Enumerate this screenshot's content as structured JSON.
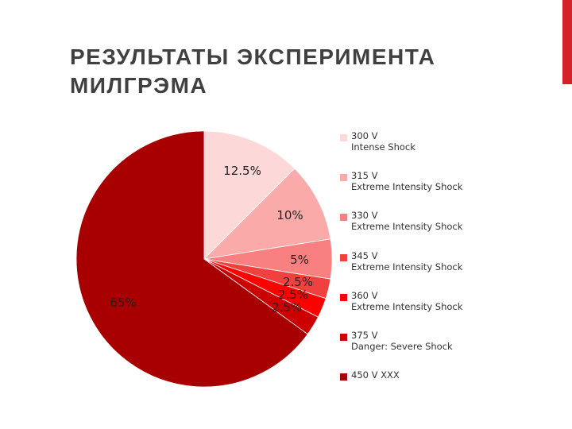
{
  "slide": {
    "title_line1": "РЕЗУЛЬТАТЫ ЭКСПЕРИМЕНТА",
    "title_line2": "МИЛГРЭМА",
    "accent_color": "#d2232a"
  },
  "chart_data": {
    "type": "pie",
    "title": "",
    "legend_position": "right",
    "slices": [
      {
        "line1": "300 V",
        "line2": "Intense Shock",
        "value": 12.5,
        "label": "12.5%",
        "color": "#fdd8d8"
      },
      {
        "line1": "315 V",
        "line2": "Extreme Intensity Shock",
        "value": 10,
        "label": "10%",
        "color": "#fbaaaa"
      },
      {
        "line1": "330 V",
        "line2": "Extreme Intensity Shock",
        "value": 5,
        "label": "5%",
        "color": "#f88080"
      },
      {
        "line1": "345 V",
        "line2": "Extreme Intensity Shock",
        "value": 2.5,
        "label": "2.5%",
        "color": "#f04040"
      },
      {
        "line1": "360 V",
        "line2": "Extreme Intensity Shock",
        "value": 2.5,
        "label": "2.5%",
        "color": "#ff0000"
      },
      {
        "line1": "375 V",
        "line2": "Danger: Severe Shock",
        "value": 2.5,
        "label": "2.5%",
        "color": "#cc0000"
      },
      {
        "line1": "450 V XXX",
        "line2": "",
        "value": 65,
        "label": "65%",
        "color": "#a80000"
      }
    ]
  }
}
